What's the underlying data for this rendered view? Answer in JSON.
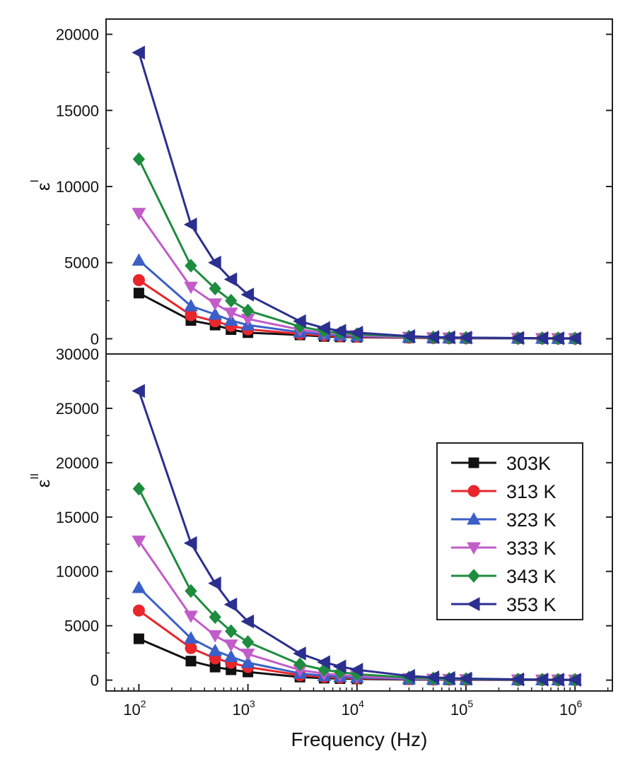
{
  "chart_data": [
    {
      "panel": "top",
      "type": "line",
      "ylabel_base": "ε",
      "ylabel_prime": "I",
      "ylim": [
        -1000,
        21000
      ],
      "yticks": [
        0,
        5000,
        10000,
        15000,
        20000
      ],
      "xscale": "log",
      "x": [
        100,
        300,
        500,
        700,
        1000,
        3000,
        5000,
        7000,
        10000,
        30000,
        50000,
        70000,
        100000,
        300000,
        500000,
        700000,
        1000000
      ],
      "series": [
        {
          "name": "303K",
          "color": "#111111",
          "marker": "square",
          "values": [
            3000,
            1200,
            900,
            600,
            400,
            250,
            150,
            120,
            100,
            60,
            40,
            35,
            30,
            20,
            15,
            10,
            10
          ]
        },
        {
          "name": "313 K",
          "color": "#e8262b",
          "marker": "circle",
          "values": [
            3850,
            1550,
            1150,
            850,
            620,
            320,
            220,
            170,
            130,
            70,
            50,
            40,
            35,
            25,
            20,
            15,
            10
          ]
        },
        {
          "name": "323 K",
          "color": "#3a5fc8",
          "marker": "triangle-up",
          "values": [
            5150,
            2150,
            1600,
            1200,
            900,
            430,
            290,
            220,
            170,
            90,
            60,
            50,
            40,
            30,
            20,
            15,
            15
          ]
        },
        {
          "name": "333 K",
          "color": "#c15cc9",
          "marker": "triangle-down",
          "values": [
            8250,
            3400,
            2300,
            1700,
            1300,
            600,
            380,
            290,
            220,
            110,
            75,
            60,
            50,
            35,
            25,
            20,
            15
          ]
        },
        {
          "name": "343 K",
          "color": "#1e8c3e",
          "marker": "diamond",
          "values": [
            11800,
            4800,
            3300,
            2500,
            1850,
            800,
            500,
            380,
            300,
            140,
            90,
            70,
            60,
            40,
            30,
            25,
            20
          ]
        },
        {
          "name": "353 K",
          "color": "#2b2f8f",
          "marker": "triangle-left",
          "values": [
            18800,
            7500,
            5000,
            3900,
            2900,
            1150,
            700,
            520,
            400,
            170,
            110,
            90,
            75,
            50,
            40,
            30,
            25
          ]
        }
      ]
    },
    {
      "panel": "bottom",
      "type": "line",
      "ylabel_base": "ε",
      "ylabel_prime": "II",
      "xlabel": "Frequency (Hz)",
      "ylim": [
        -1000,
        30000
      ],
      "yticks": [
        0,
        5000,
        10000,
        15000,
        20000,
        25000,
        30000
      ],
      "xscale": "log",
      "xlim": [
        50,
        2200000
      ],
      "xticks": [
        100,
        1000,
        10000,
        100000,
        1000000
      ],
      "xtick_labels": [
        {
          "base": "10",
          "exp": "2"
        },
        {
          "base": "10",
          "exp": "3"
        },
        {
          "base": "10",
          "exp": "4"
        },
        {
          "base": "10",
          "exp": "5"
        },
        {
          "base": "10",
          "exp": "6"
        }
      ],
      "x": [
        100,
        300,
        500,
        700,
        1000,
        3000,
        5000,
        7000,
        10000,
        30000,
        50000,
        70000,
        100000,
        300000,
        500000,
        700000,
        1000000
      ],
      "series": [
        {
          "name": "303K",
          "color": "#111111",
          "marker": "square",
          "values": [
            3800,
            1750,
            1200,
            950,
            750,
            280,
            180,
            140,
            110,
            50,
            35,
            28,
            22,
            12,
            10,
            8,
            6
          ]
        },
        {
          "name": "313 K",
          "color": "#e8262b",
          "marker": "circle",
          "values": [
            6400,
            2950,
            2000,
            1600,
            1200,
            450,
            300,
            230,
            180,
            80,
            55,
            45,
            35,
            20,
            15,
            12,
            10
          ]
        },
        {
          "name": "323 K",
          "color": "#3a5fc8",
          "marker": "triangle-up",
          "values": [
            8500,
            3850,
            2700,
            2150,
            1600,
            620,
            400,
            310,
            240,
            100,
            70,
            55,
            45,
            25,
            20,
            15,
            12
          ]
        },
        {
          "name": "333 K",
          "color": "#c15cc9",
          "marker": "triangle-down",
          "values": [
            12800,
            5900,
            4100,
            3250,
            2400,
            920,
            600,
            460,
            350,
            150,
            100,
            80,
            60,
            35,
            25,
            20,
            15
          ]
        },
        {
          "name": "343 K",
          "color": "#1e8c3e",
          "marker": "diamond",
          "values": [
            17600,
            8200,
            5800,
            4500,
            3500,
            1450,
            950,
            720,
            550,
            230,
            150,
            120,
            90,
            50,
            35,
            28,
            22
          ]
        },
        {
          "name": "353 K",
          "color": "#2b2f8f",
          "marker": "triangle-left",
          "values": [
            26600,
            12600,
            8900,
            6950,
            5400,
            2450,
            1650,
            1250,
            950,
            380,
            250,
            190,
            140,
            70,
            50,
            40,
            30
          ]
        }
      ]
    }
  ]
}
